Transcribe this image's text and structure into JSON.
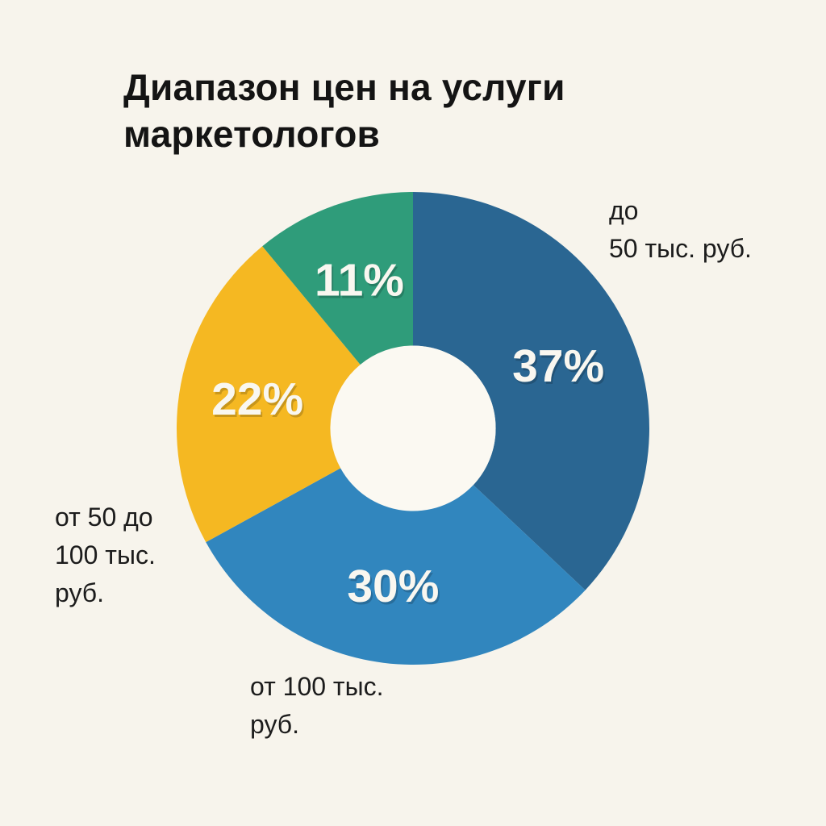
{
  "title": "Диапазон цен на услуги\nмаркетологов",
  "background_color": "#f7f4ec",
  "callouts": {
    "top_right": "до\n50 тыс. руб.",
    "left": "от 50 до\n100 тыс.\nруб.",
    "bottom": "от 100 тыс.\nруб."
  },
  "chart_data": {
    "type": "pie",
    "title": "Диапазон цен на услуги маркетологов",
    "donut": true,
    "start_angle_deg": 0,
    "direction": "clockwise",
    "inner_radius_frac": 0.35,
    "hole_color": "#fbf9f2",
    "percent_label_color": "#f9f7f0",
    "legend_position": "none",
    "slices": [
      {
        "label": "до 50 тыс. руб.",
        "value": 37,
        "percent_label": "37%",
        "color": "#2a6692"
      },
      {
        "label": "от 100 тыс. руб.",
        "value": 30,
        "percent_label": "30%",
        "color": "#3186be"
      },
      {
        "label": "от 50 до 100 тыс. руб.",
        "value": 22,
        "percent_label": "22%",
        "color": "#f5b822"
      },
      {
        "label": "",
        "value": 11,
        "percent_label": "11%",
        "color": "#2f9c7a"
      }
    ]
  }
}
